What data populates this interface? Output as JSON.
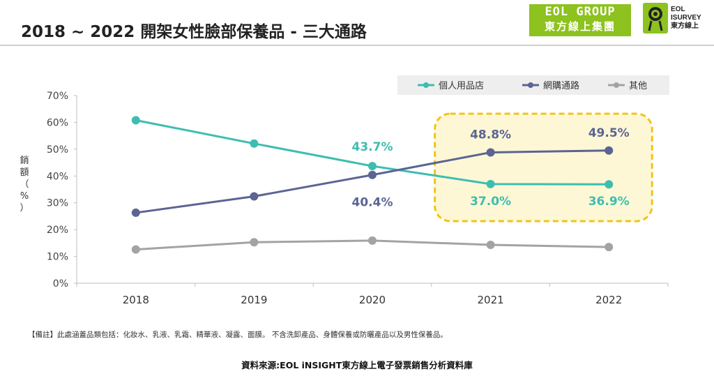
{
  "title": "2018 ~ 2022 開架女性臉部保養品 - 三大通路",
  "logos": {
    "eol_line1": "EOL GROUP",
    "eol_line2": "東方線上集團",
    "isurvey_line1": "EOL",
    "isurvey_line2": "ISURVEY",
    "isurvey_line3": "東方線上"
  },
  "colors": {
    "series_1": "#3dbdb0",
    "series_2": "#5b6493",
    "series_3": "#a3a3a3",
    "highlight": "#f0c419"
  },
  "chart_data": {
    "type": "line",
    "title": "",
    "xlabel": "",
    "ylabel": "銷額（%）",
    "x": [
      "2018",
      "2019",
      "2020",
      "2021",
      "2022"
    ],
    "ylim": [
      0,
      70
    ],
    "yticks": [
      "0%",
      "10%",
      "20%",
      "30%",
      "40%",
      "50%",
      "60%",
      "70%"
    ],
    "legend_position": "top-right",
    "grid": false,
    "series": [
      {
        "name": "個人用品店",
        "values": [
          60.8,
          52.1,
          43.7,
          37.0,
          36.9
        ],
        "labels": [
          "",
          "",
          "43.7%",
          "37.0%",
          "36.9%"
        ]
      },
      {
        "name": "網購通路",
        "values": [
          26.3,
          32.4,
          40.4,
          48.8,
          49.5
        ],
        "labels": [
          "",
          "",
          "40.4%",
          "48.8%",
          "49.5%"
        ]
      },
      {
        "name": "其他",
        "values": [
          12.6,
          15.3,
          15.9,
          14.3,
          13.5
        ],
        "labels": [
          "",
          "",
          "",
          "",
          ""
        ]
      }
    ],
    "highlight_years": [
      "2021",
      "2022"
    ]
  },
  "note": "【備註】此處涵蓋品類包括：化妝水、乳液、乳霜、精華液、凝露、面膜。 不含洗卸產品、身體保養或防曬產品以及男性保養品。",
  "source": "資料來源:EOL iNSIGHT東方線上電子發票銷售分析資料庫"
}
